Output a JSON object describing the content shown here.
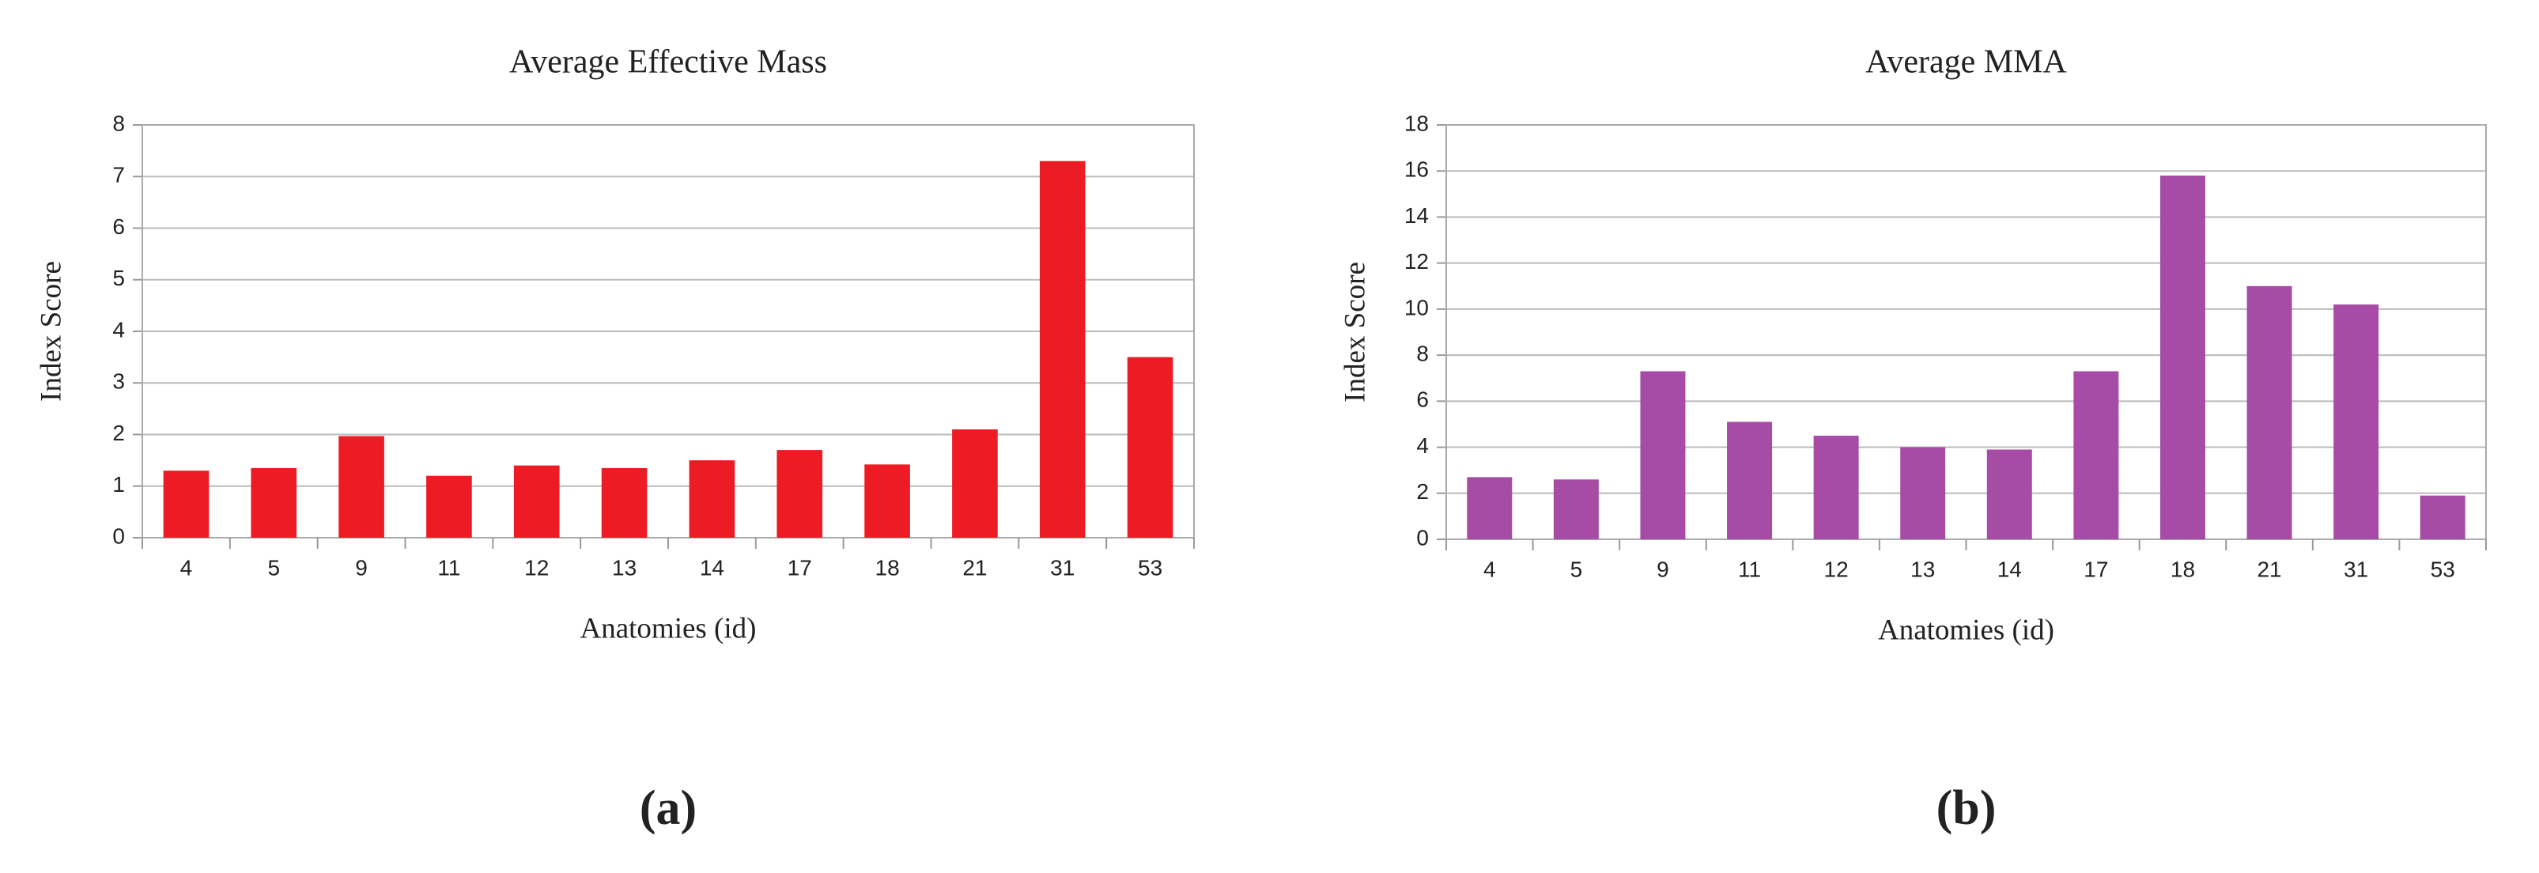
{
  "chart_data": [
    {
      "type": "bar",
      "title": "Average Effective Mass",
      "caption": "(a)",
      "x_label": "Anatomies (id)",
      "y_label": "Index Score",
      "categories": [
        "4",
        "5",
        "9",
        "11",
        "12",
        "13",
        "14",
        "17",
        "18",
        "21",
        "31",
        "53"
      ],
      "values": [
        1.3,
        1.35,
        1.97,
        1.2,
        1.4,
        1.35,
        1.5,
        1.7,
        1.42,
        2.1,
        7.3,
        3.5
      ],
      "color": "#ed1c24",
      "ylim": [
        0,
        8
      ],
      "yticks": [
        0,
        1,
        2,
        3,
        4,
        5,
        6,
        7,
        8
      ],
      "grid": true
    },
    {
      "type": "bar",
      "title": "Average MMA",
      "caption": "(b)",
      "x_label": "Anatomies (id)",
      "y_label": "Index Score",
      "categories": [
        "4",
        "5",
        "9",
        "11",
        "12",
        "13",
        "14",
        "17",
        "18",
        "21",
        "31",
        "53"
      ],
      "values": [
        2.7,
        2.6,
        7.3,
        5.1,
        4.5,
        4.0,
        3.9,
        7.3,
        15.8,
        11.0,
        10.2,
        1.9
      ],
      "color": "#a64ca6",
      "ylim": [
        0,
        18
      ],
      "yticks": [
        0,
        2,
        4,
        6,
        8,
        10,
        12,
        14,
        16,
        18
      ],
      "grid": true
    }
  ]
}
